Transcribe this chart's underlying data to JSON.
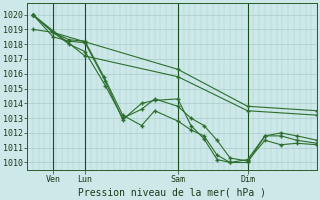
{
  "background_color": "#cce8e8",
  "grid_color": "#aacccc",
  "line_color": "#2d6e2d",
  "marker_color": "#2d6e2d",
  "xlabel_text": "Pression niveau de la mer( hPa )",
  "yticks": [
    1010,
    1011,
    1012,
    1013,
    1014,
    1015,
    1016,
    1017,
    1018,
    1019,
    1020
  ],
  "ylim": [
    1009.5,
    1020.8
  ],
  "xlim": [
    0.0,
    1.0
  ],
  "xtick_positions": [
    0.09,
    0.2,
    0.52,
    0.76
  ],
  "xtick_labels": [
    "Ven",
    "Lun",
    "Sam",
    "Dim"
  ],
  "vline_positions": [
    0.09,
    0.2,
    0.52,
    0.76
  ],
  "series": [
    {
      "x": [
        0.02,
        0.09,
        0.145,
        0.2,
        0.27,
        0.33,
        0.395,
        0.44,
        0.52,
        0.565,
        0.61,
        0.655,
        0.7,
        0.76,
        0.82,
        0.875,
        0.93,
        1.0
      ],
      "y": [
        1020.0,
        1018.8,
        1018.0,
        1017.5,
        1015.2,
        1013.0,
        1013.6,
        1014.3,
        1013.8,
        1013.0,
        1012.5,
        1011.5,
        1010.3,
        1010.1,
        1011.5,
        1011.2,
        1011.3,
        1011.2
      ]
    },
    {
      "x": [
        0.02,
        0.09,
        0.145,
        0.2,
        0.27,
        0.33,
        0.395,
        0.44,
        0.52,
        0.565,
        0.61,
        0.655,
        0.7,
        0.76,
        0.82,
        0.875,
        0.93,
        1.0
      ],
      "y": [
        1020.0,
        1018.5,
        1018.2,
        1018.1,
        1015.5,
        1012.9,
        1014.0,
        1014.2,
        1014.3,
        1012.5,
        1011.6,
        1010.2,
        1010.0,
        1010.2,
        1011.8,
        1011.8,
        1011.5,
        1011.3
      ]
    },
    {
      "x": [
        0.02,
        0.09,
        0.145,
        0.2,
        0.265,
        0.33,
        0.395,
        0.44,
        0.52,
        0.565,
        0.61,
        0.655,
        0.7,
        0.76,
        0.82,
        0.875,
        0.93,
        1.0
      ],
      "y": [
        1020.0,
        1018.8,
        1018.3,
        1018.2,
        1015.8,
        1013.2,
        1012.5,
        1013.5,
        1012.8,
        1012.2,
        1011.8,
        1010.5,
        1010.0,
        1010.0,
        1011.8,
        1012.0,
        1011.8,
        1011.5
      ]
    },
    {
      "x": [
        0.02,
        0.2,
        0.52,
        0.76,
        1.0
      ],
      "y": [
        1020.0,
        1017.2,
        1015.8,
        1013.5,
        1013.2
      ]
    },
    {
      "x": [
        0.02,
        0.09,
        0.52,
        0.76,
        1.0
      ],
      "y": [
        1019.0,
        1018.8,
        1016.3,
        1013.8,
        1013.5
      ]
    }
  ]
}
